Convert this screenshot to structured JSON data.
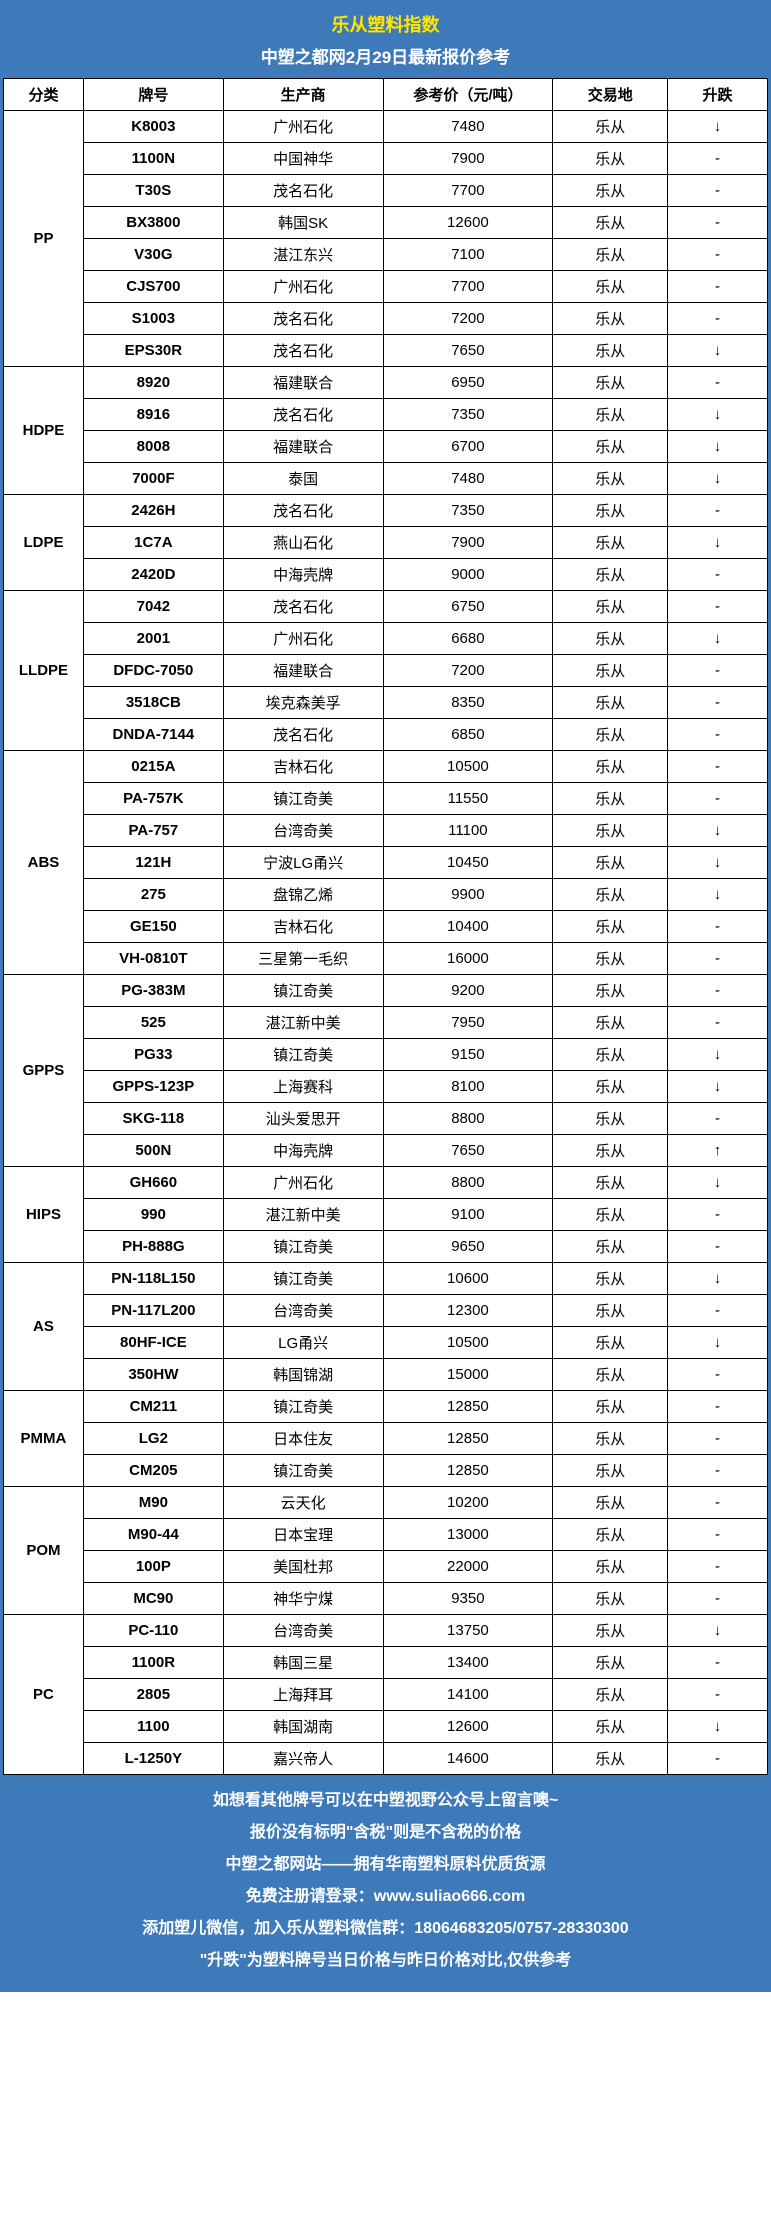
{
  "header": {
    "title_main": "乐从塑料指数",
    "title_sub": "中塑之都网2月29日最新报价参考"
  },
  "columns": [
    "分类",
    "牌号",
    "生产商",
    "参考价（元/吨）",
    "交易地",
    "升跌"
  ],
  "categories": [
    {
      "name": "PP",
      "rows": [
        [
          "K8003",
          "广州石化",
          "7480",
          "乐从",
          "↓"
        ],
        [
          "1100N",
          "中国神华",
          "7900",
          "乐从",
          "-"
        ],
        [
          "T30S",
          "茂名石化",
          "7700",
          "乐从",
          "-"
        ],
        [
          "BX3800",
          "韩国SK",
          "12600",
          "乐从",
          "-"
        ],
        [
          "V30G",
          "湛江东兴",
          "7100",
          "乐从",
          "-"
        ],
        [
          "CJS700",
          "广州石化",
          "7700",
          "乐从",
          "-"
        ],
        [
          "S1003",
          "茂名石化",
          "7200",
          "乐从",
          "-"
        ],
        [
          "EPS30R",
          "茂名石化",
          "7650",
          "乐从",
          "↓"
        ]
      ]
    },
    {
      "name": "HDPE",
      "rows": [
        [
          "8920",
          "福建联合",
          "6950",
          "乐从",
          "-"
        ],
        [
          "8916",
          "茂名石化",
          "7350",
          "乐从",
          "↓"
        ],
        [
          "8008",
          "福建联合",
          "6700",
          "乐从",
          "↓"
        ],
        [
          "7000F",
          "泰国",
          "7480",
          "乐从",
          "↓"
        ]
      ]
    },
    {
      "name": "LDPE",
      "rows": [
        [
          "2426H",
          "茂名石化",
          "7350",
          "乐从",
          "-"
        ],
        [
          "1C7A",
          "燕山石化",
          "7900",
          "乐从",
          "↓"
        ],
        [
          "2420D",
          "中海壳牌",
          "9000",
          "乐从",
          "-"
        ]
      ]
    },
    {
      "name": "LLDPE",
      "rows": [
        [
          "7042",
          "茂名石化",
          "6750",
          "乐从",
          "-"
        ],
        [
          "2001",
          "广州石化",
          "6680",
          "乐从",
          "↓"
        ],
        [
          "DFDC-7050",
          "福建联合",
          "7200",
          "乐从",
          "-"
        ],
        [
          "3518CB",
          "埃克森美孚",
          "8350",
          "乐从",
          "-"
        ],
        [
          "DNDA-7144",
          "茂名石化",
          "6850",
          "乐从",
          "-"
        ]
      ]
    },
    {
      "name": "ABS",
      "rows": [
        [
          "0215A",
          "吉林石化",
          "10500",
          "乐从",
          "-"
        ],
        [
          "PA-757K",
          "镇江奇美",
          "11550",
          "乐从",
          "-"
        ],
        [
          "PA-757",
          "台湾奇美",
          "11100",
          "乐从",
          "↓"
        ],
        [
          "121H",
          "宁波LG甬兴",
          "10450",
          "乐从",
          "↓"
        ],
        [
          "275",
          "盘锦乙烯",
          "9900",
          "乐从",
          "↓"
        ],
        [
          "GE150",
          "吉林石化",
          "10400",
          "乐从",
          "-"
        ],
        [
          "VH-0810T",
          "三星第一毛织",
          "16000",
          "乐从",
          "-"
        ]
      ]
    },
    {
      "name": "GPPS",
      "rows": [
        [
          "PG-383M",
          "镇江奇美",
          "9200",
          "乐从",
          "-"
        ],
        [
          "525",
          "湛江新中美",
          "7950",
          "乐从",
          "-"
        ],
        [
          "PG33",
          "镇江奇美",
          "9150",
          "乐从",
          "↓"
        ],
        [
          "GPPS-123P",
          "上海赛科",
          "8100",
          "乐从",
          "↓"
        ],
        [
          "SKG-118",
          "汕头爱思开",
          "8800",
          "乐从",
          "-"
        ],
        [
          "500N",
          "中海壳牌",
          "7650",
          "乐从",
          "↑"
        ]
      ]
    },
    {
      "name": "HIPS",
      "rows": [
        [
          "GH660",
          "广州石化",
          "8800",
          "乐从",
          "↓"
        ],
        [
          "990",
          "湛江新中美",
          "9100",
          "乐从",
          "-"
        ],
        [
          "PH-888G",
          "镇江奇美",
          "9650",
          "乐从",
          "-"
        ]
      ]
    },
    {
      "name": "AS",
      "rows": [
        [
          "PN-118L150",
          "镇江奇美",
          "10600",
          "乐从",
          "↓"
        ],
        [
          "PN-117L200",
          "台湾奇美",
          "12300",
          "乐从",
          "-"
        ],
        [
          "80HF-ICE",
          "LG甬兴",
          "10500",
          "乐从",
          "↓"
        ],
        [
          "350HW",
          "韩国锦湖",
          "15000",
          "乐从",
          "-"
        ]
      ]
    },
    {
      "name": "PMMA",
      "rows": [
        [
          "CM211",
          "镇江奇美",
          "12850",
          "乐从",
          "-"
        ],
        [
          "LG2",
          "日本住友",
          "12850",
          "乐从",
          "-"
        ],
        [
          "CM205",
          "镇江奇美",
          "12850",
          "乐从",
          "-"
        ]
      ]
    },
    {
      "name": "POM",
      "rows": [
        [
          "M90",
          "云天化",
          "10200",
          "乐从",
          "-"
        ],
        [
          "M90-44",
          "日本宝理",
          "13000",
          "乐从",
          "-"
        ],
        [
          "100P",
          "美国杜邦",
          "22000",
          "乐从",
          "-"
        ],
        [
          "MC90",
          "神华宁煤",
          "9350",
          "乐从",
          "-"
        ]
      ]
    },
    {
      "name": "PC",
      "rows": [
        [
          "PC-110",
          "台湾奇美",
          "13750",
          "乐从",
          "↓"
        ],
        [
          "1100R",
          "韩国三星",
          "13400",
          "乐从",
          "-"
        ],
        [
          "2805",
          "上海拜耳",
          "14100",
          "乐从",
          "-"
        ],
        [
          "1100",
          "韩国湖南",
          "12600",
          "乐从",
          "↓"
        ],
        [
          "L-1250Y",
          "嘉兴帝人",
          "14600",
          "乐从",
          "-"
        ]
      ]
    }
  ],
  "footer": {
    "line1": "如想看其他牌号可以在中塑视野公众号上留言噢~",
    "line2": "报价没有标明\"含税\"则是不含税的价格",
    "line3": "中塑之都网站——拥有华南塑料原料优质货源",
    "line4": "免费注册请登录：www.suliao666.com",
    "line5": "添加塑儿微信，加入乐从塑料微信群：18064683205/0757-28330300",
    "line6": "\"升跌\"为塑料牌号当日价格与昨日价格对比,仅供参考"
  }
}
